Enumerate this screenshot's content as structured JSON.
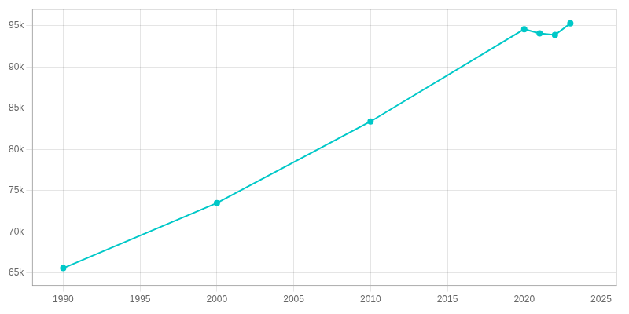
{
  "chart_data": {
    "type": "line",
    "x": [
      1990,
      2000,
      2010,
      2020,
      2021,
      2022,
      2023
    ],
    "values": [
      65600,
      73500,
      83400,
      94600,
      94100,
      93900,
      95300
    ],
    "color": "#00C8C8",
    "marker": "circle",
    "xlim": [
      1988,
      2026
    ],
    "xticks": [
      1990,
      1995,
      2000,
      2005,
      2010,
      2015,
      2020,
      2025
    ],
    "ylim": [
      63500,
      97000
    ],
    "yticks": [
      {
        "value": 65000,
        "label": "65k"
      },
      {
        "value": 70000,
        "label": "70k"
      },
      {
        "value": 75000,
        "label": "75k"
      },
      {
        "value": 80000,
        "label": "80k"
      },
      {
        "value": 85000,
        "label": "85k"
      },
      {
        "value": 90000,
        "label": "90k"
      },
      {
        "value": 95000,
        "label": "95k"
      }
    ],
    "grid": true
  }
}
